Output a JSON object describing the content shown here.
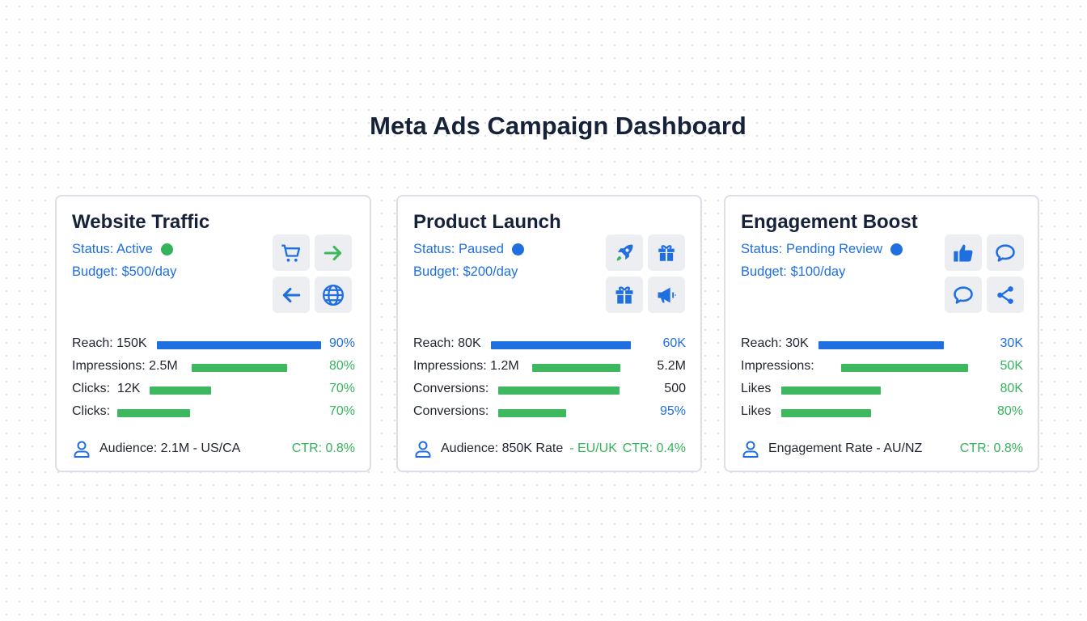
{
  "title": "Meta Ads Campaign Dashboard",
  "colors": {
    "blue": "#1f6fe0",
    "green": "#3db85e",
    "title": "#16213a"
  },
  "cards": [
    {
      "title": "Website Traffic",
      "status": "Status: Active",
      "status_color": "#34b35a",
      "budget": "Budget: $500/day",
      "icons": [
        "shopping-cart-icon",
        "arrow-right-icon",
        "arrow-left-icon",
        "globe-icon"
      ],
      "metrics": [
        {
          "label": "Reach: 150K",
          "value": "90%"
        },
        {
          "label": "Impressions: 2.5M",
          "value": "80%"
        },
        {
          "label": "Clicks:  12K",
          "value": "70%"
        },
        {
          "label": "Clicks:",
          "value": "70%"
        }
      ],
      "audience": "Audience: 2.1M - US/CA",
      "ctr": "CTR: 0.8%"
    },
    {
      "title": "Product Launch",
      "status": "Status: Paused",
      "status_color": "#1f6fe0",
      "budget": "Budget: $200/day",
      "icons": [
        "rocket-icon",
        "gift-icon",
        "gift-icon",
        "megaphone-icon"
      ],
      "metrics": [
        {
          "label": "Reach: 80K",
          "value": "60K"
        },
        {
          "label": "Impressions: 1.2M",
          "value": "5.2M"
        },
        {
          "label": "Conversions:",
          "value": "500"
        },
        {
          "label": "Conversions:",
          "value": "95%"
        }
      ],
      "audience": "Audience: 850K Rate",
      "audience_region": "- EU/UK",
      "ctr": "CTR: 0.4%"
    },
    {
      "title": "Engagement Boost",
      "status": "Status: Pending Review",
      "status_color": "#1f6fe0",
      "budget": "Budget: $100/day",
      "icons": [
        "thumbs-up-icon",
        "comment-icon",
        "comment-icon",
        "share-icon"
      ],
      "metrics": [
        {
          "label": "Reach: 30K",
          "value": "30K"
        },
        {
          "label": "Impressions:",
          "value": "50K"
        },
        {
          "label": "Likes",
          "value": "80K"
        },
        {
          "label": "Likes",
          "value": "80%"
        }
      ],
      "audience": "Engagement Rate - AU/NZ",
      "ctr": "CTR: 0.8%"
    }
  ]
}
